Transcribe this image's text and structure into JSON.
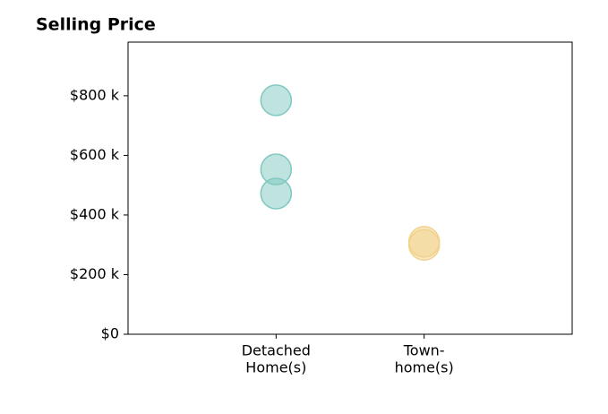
{
  "chart_data": {
    "type": "scatter",
    "title": "Selling Price",
    "xlim": [
      0,
      3
    ],
    "xticks": [
      {
        "value": 1,
        "label": [
          "Detached",
          "Home(s)"
        ]
      },
      {
        "value": 2,
        "label": [
          "Town-",
          "home(s)"
        ]
      }
    ],
    "ylim": [
      0,
      980
    ],
    "yticks": [
      {
        "value": 0,
        "label": "$0"
      },
      {
        "value": 200,
        "label": "$200 k"
      },
      {
        "value": 400,
        "label": "$400 k"
      },
      {
        "value": 600,
        "label": "$600 k"
      },
      {
        "value": 800,
        "label": "$800 k"
      }
    ],
    "alpha": 0.5,
    "series": [
      {
        "color": "#7fc8c0",
        "x": [
          1,
          1,
          1
        ],
        "values": [
          785,
          553,
          472
        ]
      },
      {
        "color": "#f2d28a",
        "x": [
          2,
          2
        ],
        "values": [
          310,
          300
        ]
      }
    ]
  }
}
